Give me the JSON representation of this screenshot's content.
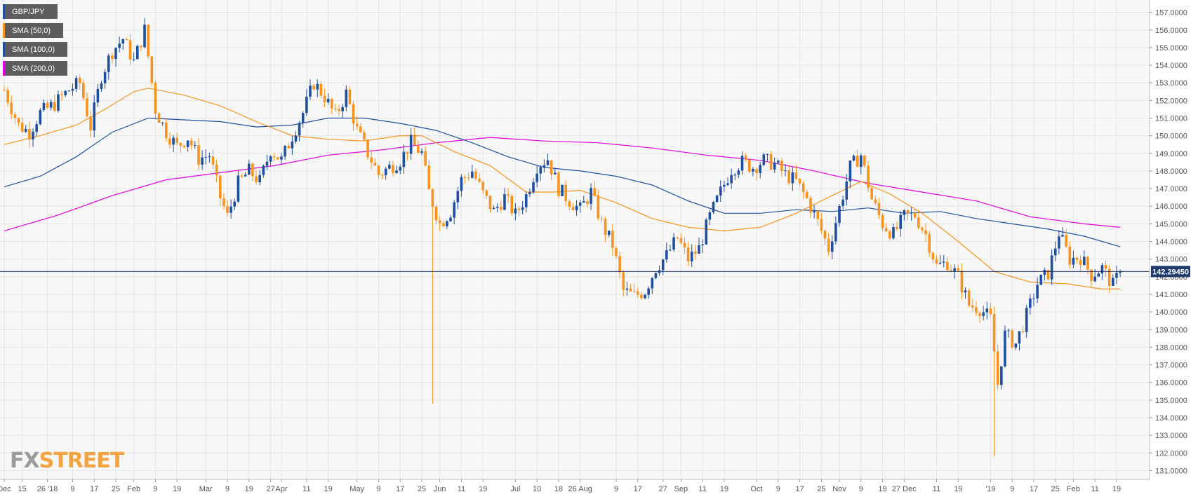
{
  "legend": {
    "items": [
      {
        "label": "GBP/JPY",
        "color": "#1f4fa0"
      },
      {
        "label": "SMA (50,0)",
        "color": "#f7931e"
      },
      {
        "label": "SMA (100,0)",
        "color": "#1f4fa0"
      },
      {
        "label": "SMA (200,0)",
        "color": "#e100e1"
      }
    ]
  },
  "logo": {
    "part1": "FX",
    "part2": "STREET"
  },
  "current_price_label": "142.29450",
  "colors": {
    "up_candle": "#1f4fa0",
    "down_candle": "#f7931e",
    "sma50": "#f7931e",
    "sma100": "#1f4fa0",
    "sma200": "#e100e1",
    "price_line": "#1f3a6e",
    "grid": "#e6e6e6"
  },
  "chart_data": {
    "type": "candlestick",
    "symbol": "GBP/JPY",
    "timeframe": "daily",
    "ylim": [
      130.5,
      157.7
    ],
    "yticks": [
      131,
      132,
      133,
      134,
      135,
      136,
      137,
      138,
      139,
      140,
      141,
      142,
      143,
      144,
      145,
      146,
      147,
      148,
      149,
      150,
      151,
      152,
      153,
      154,
      155,
      156,
      157
    ],
    "ytick_labels": [
      "131.0000",
      "132.0000",
      "133.0000",
      "134.0000",
      "135.0000",
      "136.0000",
      "137.0000",
      "138.0000",
      "139.0000",
      "140.0000",
      "141.0000",
      "142.0000",
      "143.0000",
      "144.0000",
      "145.0000",
      "146.0000",
      "147.0000",
      "148.0000",
      "149.0000",
      "150.0000",
      "151.0000",
      "152.0000",
      "153.0000",
      "154.0000",
      "155.0000",
      "156.0000",
      "157.0000"
    ],
    "xticks": [
      {
        "label": "Dec",
        "day": 0
      },
      {
        "label": "15",
        "day": 5
      },
      {
        "label": "26 '18",
        "day": 12
      },
      {
        "label": "9",
        "day": 19
      },
      {
        "label": "17",
        "day": 25
      },
      {
        "label": "25",
        "day": 31
      },
      {
        "label": "Feb",
        "day": 36
      },
      {
        "label": "9",
        "day": 42
      },
      {
        "label": "19",
        "day": 48
      },
      {
        "label": "Mar",
        "day": 56
      },
      {
        "label": "9",
        "day": 62
      },
      {
        "label": "19",
        "day": 68
      },
      {
        "label": "27",
        "day": 74
      },
      {
        "label": "Apr",
        "day": 77
      },
      {
        "label": "11",
        "day": 84
      },
      {
        "label": "19",
        "day": 90
      },
      {
        "label": "May",
        "day": 98
      },
      {
        "label": "9",
        "day": 104
      },
      {
        "label": "17",
        "day": 110
      },
      {
        "label": "25",
        "day": 116
      },
      {
        "label": "Jun",
        "day": 121
      },
      {
        "label": "11",
        "day": 127
      },
      {
        "label": "19",
        "day": 133
      },
      {
        "label": "Jul",
        "day": 142
      },
      {
        "label": "10",
        "day": 148
      },
      {
        "label": "18",
        "day": 154
      },
      {
        "label": "26 Aug",
        "day": 160
      },
      {
        "label": "9",
        "day": 170
      },
      {
        "label": "17",
        "day": 176
      },
      {
        "label": "27",
        "day": 183
      },
      {
        "label": "Sep",
        "day": 188
      },
      {
        "label": "11",
        "day": 194
      },
      {
        "label": "19",
        "day": 200
      },
      {
        "label": "Oct",
        "day": 209
      },
      {
        "label": "9",
        "day": 215
      },
      {
        "label": "17",
        "day": 221
      },
      {
        "label": "25",
        "day": 227
      },
      {
        "label": "Nov",
        "day": 232
      },
      {
        "label": "9",
        "day": 238
      },
      {
        "label": "19",
        "day": 244
      },
      {
        "label": "27 Dec",
        "day": 250
      },
      {
        "label": "11",
        "day": 259
      },
      {
        "label": "19",
        "day": 265
      },
      {
        "label": "'19",
        "day": 274
      },
      {
        "label": "9",
        "day": 280
      },
      {
        "label": "17",
        "day": 286
      },
      {
        "label": "25",
        "day": 292
      },
      {
        "label": "Feb",
        "day": 297
      },
      {
        "label": "11",
        "day": 303
      },
      {
        "label": "19",
        "day": 309
      }
    ],
    "anchors": [
      {
        "day": 0,
        "close": 152.6
      },
      {
        "day": 4,
        "close": 150.6
      },
      {
        "day": 7,
        "close": 150.2
      },
      {
        "day": 10,
        "close": 151.3
      },
      {
        "day": 14,
        "close": 151.8
      },
      {
        "day": 18,
        "close": 152.6
      },
      {
        "day": 21,
        "close": 153.0
      },
      {
        "day": 24,
        "close": 150.5
      },
      {
        "day": 27,
        "close": 153.4
      },
      {
        "day": 30,
        "close": 154.8
      },
      {
        "day": 33,
        "close": 155.5
      },
      {
        "day": 36,
        "close": 154.2
      },
      {
        "day": 39,
        "close": 156.0
      },
      {
        "day": 42,
        "close": 151.5
      },
      {
        "day": 45,
        "close": 150.2
      },
      {
        "day": 48,
        "close": 149.4
      },
      {
        "day": 51,
        "close": 149.9
      },
      {
        "day": 54,
        "close": 148.7
      },
      {
        "day": 57,
        "close": 148.9
      },
      {
        "day": 60,
        "close": 146.5
      },
      {
        "day": 62,
        "close": 145.4
      },
      {
        "day": 65,
        "close": 147.3
      },
      {
        "day": 68,
        "close": 148.0
      },
      {
        "day": 71,
        "close": 147.4
      },
      {
        "day": 74,
        "close": 149.2
      },
      {
        "day": 77,
        "close": 148.6
      },
      {
        "day": 80,
        "close": 150.0
      },
      {
        "day": 83,
        "close": 151.3
      },
      {
        "day": 86,
        "close": 153.0
      },
      {
        "day": 89,
        "close": 152.2
      },
      {
        "day": 92,
        "close": 151.1
      },
      {
        "day": 95,
        "close": 152.4
      },
      {
        "day": 98,
        "close": 150.3
      },
      {
        "day": 101,
        "close": 149.0
      },
      {
        "day": 104,
        "close": 147.8
      },
      {
        "day": 107,
        "close": 148.2
      },
      {
        "day": 110,
        "close": 148.6
      },
      {
        "day": 113,
        "close": 149.6
      },
      {
        "day": 116,
        "close": 149.0
      },
      {
        "day": 118,
        "close": 146.8
      },
      {
        "day": 121,
        "close": 145.0
      },
      {
        "day": 124,
        "close": 145.7
      },
      {
        "day": 127,
        "close": 147.5
      },
      {
        "day": 130,
        "close": 148.0
      },
      {
        "day": 133,
        "close": 146.7
      },
      {
        "day": 136,
        "close": 145.7
      },
      {
        "day": 139,
        "close": 146.5
      },
      {
        "day": 142,
        "close": 145.5
      },
      {
        "day": 145,
        "close": 146.6
      },
      {
        "day": 148,
        "close": 148.3
      },
      {
        "day": 151,
        "close": 148.7
      },
      {
        "day": 154,
        "close": 147.0
      },
      {
        "day": 157,
        "close": 146.3
      },
      {
        "day": 160,
        "close": 145.8
      },
      {
        "day": 163,
        "close": 146.8
      },
      {
        "day": 166,
        "close": 145.0
      },
      {
        "day": 169,
        "close": 143.8
      },
      {
        "day": 172,
        "close": 141.2
      },
      {
        "day": 175,
        "close": 140.9
      },
      {
        "day": 178,
        "close": 141.2
      },
      {
        "day": 181,
        "close": 142.5
      },
      {
        "day": 184,
        "close": 143.2
      },
      {
        "day": 187,
        "close": 144.2
      },
      {
        "day": 190,
        "close": 143.0
      },
      {
        "day": 193,
        "close": 143.6
      },
      {
        "day": 196,
        "close": 145.4
      },
      {
        "day": 199,
        "close": 146.8
      },
      {
        "day": 202,
        "close": 148.1
      },
      {
        "day": 205,
        "close": 148.5
      },
      {
        "day": 208,
        "close": 148.2
      },
      {
        "day": 211,
        "close": 148.6
      },
      {
        "day": 214,
        "close": 148.4
      },
      {
        "day": 217,
        "close": 147.8
      },
      {
        "day": 220,
        "close": 147.4
      },
      {
        "day": 223,
        "close": 146.4
      },
      {
        "day": 226,
        "close": 145.1
      },
      {
        "day": 229,
        "close": 143.6
      },
      {
        "day": 232,
        "close": 145.9
      },
      {
        "day": 235,
        "close": 148.2
      },
      {
        "day": 238,
        "close": 148.9
      },
      {
        "day": 241,
        "close": 146.4
      },
      {
        "day": 244,
        "close": 145.0
      },
      {
        "day": 247,
        "close": 144.4
      },
      {
        "day": 250,
        "close": 145.4
      },
      {
        "day": 253,
        "close": 145.5
      },
      {
        "day": 256,
        "close": 144.4
      },
      {
        "day": 259,
        "close": 142.6
      },
      {
        "day": 262,
        "close": 142.8
      },
      {
        "day": 265,
        "close": 142.0
      },
      {
        "day": 268,
        "close": 140.4
      },
      {
        "day": 271,
        "close": 140.2
      },
      {
        "day": 274,
        "close": 139.6
      },
      {
        "day": 276,
        "close": 135.9
      },
      {
        "day": 278,
        "close": 138.7
      },
      {
        "day": 281,
        "close": 138.2
      },
      {
        "day": 284,
        "close": 139.8
      },
      {
        "day": 287,
        "close": 141.6
      },
      {
        "day": 290,
        "close": 142.2
      },
      {
        "day": 293,
        "close": 144.5
      },
      {
        "day": 296,
        "close": 143.0
      },
      {
        "day": 299,
        "close": 143.1
      },
      {
        "day": 302,
        "close": 142.1
      },
      {
        "day": 305,
        "close": 142.5
      },
      {
        "day": 308,
        "close": 141.5
      },
      {
        "day": 310,
        "close": 142.3
      }
    ],
    "spikes": [
      {
        "day": 119,
        "low": 134.8
      },
      {
        "day": 275,
        "low": 131.8
      }
    ],
    "sma50": [
      {
        "day": 0,
        "value": 149.5
      },
      {
        "day": 10,
        "value": 150.0
      },
      {
        "day": 20,
        "value": 150.6
      },
      {
        "day": 28,
        "value": 151.5
      },
      {
        "day": 36,
        "value": 152.5
      },
      {
        "day": 40,
        "value": 152.7
      },
      {
        "day": 50,
        "value": 152.3
      },
      {
        "day": 60,
        "value": 151.7
      },
      {
        "day": 70,
        "value": 150.8
      },
      {
        "day": 80,
        "value": 150.0
      },
      {
        "day": 90,
        "value": 149.8
      },
      {
        "day": 100,
        "value": 149.7
      },
      {
        "day": 110,
        "value": 150.0
      },
      {
        "day": 116,
        "value": 150.0
      },
      {
        "day": 125,
        "value": 149.1
      },
      {
        "day": 135,
        "value": 148.3
      },
      {
        "day": 145,
        "value": 146.8
      },
      {
        "day": 152,
        "value": 146.8
      },
      {
        "day": 160,
        "value": 146.9
      },
      {
        "day": 170,
        "value": 146.2
      },
      {
        "day": 180,
        "value": 145.3
      },
      {
        "day": 190,
        "value": 144.8
      },
      {
        "day": 200,
        "value": 144.6
      },
      {
        "day": 210,
        "value": 144.8
      },
      {
        "day": 220,
        "value": 145.6
      },
      {
        "day": 230,
        "value": 146.6
      },
      {
        "day": 238,
        "value": 147.4
      },
      {
        "day": 246,
        "value": 146.7
      },
      {
        "day": 255,
        "value": 145.6
      },
      {
        "day": 265,
        "value": 144.0
      },
      {
        "day": 275,
        "value": 142.3
      },
      {
        "day": 285,
        "value": 141.7
      },
      {
        "day": 295,
        "value": 141.6
      },
      {
        "day": 305,
        "value": 141.3
      },
      {
        "day": 310,
        "value": 141.3
      }
    ],
    "sma100": [
      {
        "day": 0,
        "value": 147.1
      },
      {
        "day": 10,
        "value": 147.7
      },
      {
        "day": 20,
        "value": 148.8
      },
      {
        "day": 30,
        "value": 150.2
      },
      {
        "day": 40,
        "value": 151.0
      },
      {
        "day": 50,
        "value": 150.9
      },
      {
        "day": 60,
        "value": 150.8
      },
      {
        "day": 70,
        "value": 150.5
      },
      {
        "day": 80,
        "value": 150.6
      },
      {
        "day": 90,
        "value": 151.0
      },
      {
        "day": 100,
        "value": 151.0
      },
      {
        "day": 110,
        "value": 150.7
      },
      {
        "day": 120,
        "value": 150.3
      },
      {
        "day": 130,
        "value": 149.6
      },
      {
        "day": 140,
        "value": 148.8
      },
      {
        "day": 150,
        "value": 148.2
      },
      {
        "day": 160,
        "value": 148.0
      },
      {
        "day": 170,
        "value": 147.7
      },
      {
        "day": 180,
        "value": 147.2
      },
      {
        "day": 190,
        "value": 146.3
      },
      {
        "day": 200,
        "value": 145.6
      },
      {
        "day": 210,
        "value": 145.6
      },
      {
        "day": 220,
        "value": 145.8
      },
      {
        "day": 230,
        "value": 145.7
      },
      {
        "day": 240,
        "value": 145.9
      },
      {
        "day": 250,
        "value": 145.6
      },
      {
        "day": 260,
        "value": 145.7
      },
      {
        "day": 270,
        "value": 145.3
      },
      {
        "day": 280,
        "value": 145.0
      },
      {
        "day": 290,
        "value": 144.7
      },
      {
        "day": 300,
        "value": 144.3
      },
      {
        "day": 310,
        "value": 143.7
      }
    ],
    "sma200": [
      {
        "day": 0,
        "value": 144.6
      },
      {
        "day": 15,
        "value": 145.5
      },
      {
        "day": 30,
        "value": 146.6
      },
      {
        "day": 45,
        "value": 147.5
      },
      {
        "day": 60,
        "value": 147.9
      },
      {
        "day": 75,
        "value": 148.3
      },
      {
        "day": 90,
        "value": 148.9
      },
      {
        "day": 105,
        "value": 149.2
      },
      {
        "day": 120,
        "value": 149.6
      },
      {
        "day": 135,
        "value": 149.9
      },
      {
        "day": 150,
        "value": 149.7
      },
      {
        "day": 165,
        "value": 149.6
      },
      {
        "day": 180,
        "value": 149.3
      },
      {
        "day": 195,
        "value": 148.9
      },
      {
        "day": 210,
        "value": 148.6
      },
      {
        "day": 225,
        "value": 148.0
      },
      {
        "day": 240,
        "value": 147.3
      },
      {
        "day": 255,
        "value": 146.8
      },
      {
        "day": 270,
        "value": 146.3
      },
      {
        "day": 285,
        "value": 145.4
      },
      {
        "day": 300,
        "value": 145.0
      },
      {
        "day": 310,
        "value": 144.8
      }
    ],
    "last_price": 142.2945,
    "xmax_day": 317
  }
}
